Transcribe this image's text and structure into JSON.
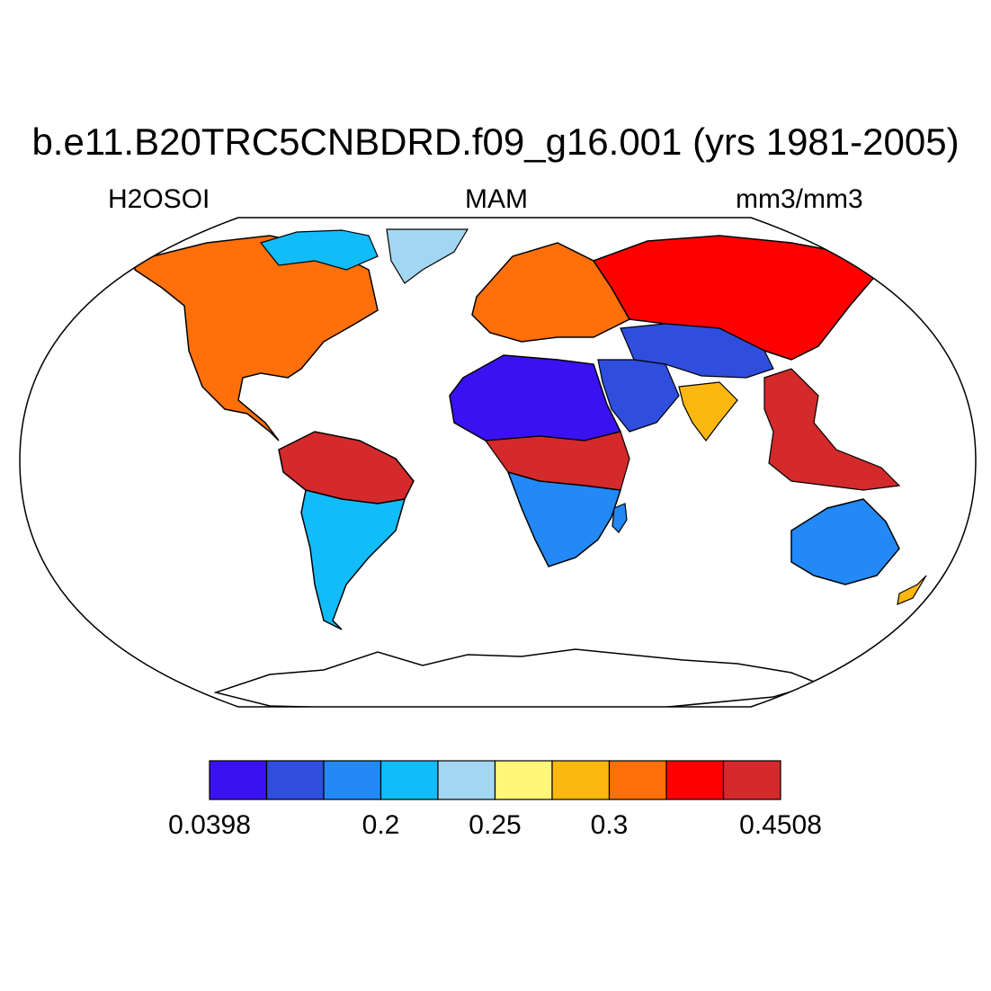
{
  "title": "b.e11.B20TRC5CNBDRD.f09_g16.001 (yrs 1981-2005)",
  "left_label": "H2OSOI",
  "center_label": "MAM",
  "right_label": "mm3/mm3",
  "colorbar": {
    "colors": [
      "#3a12f2",
      "#2f4ede",
      "#2289f6",
      "#12bcf8",
      "#a3d6f2",
      "#fff67a",
      "#fdb80f",
      "#ff700a",
      "#ff0000",
      "#d42a2b"
    ],
    "labels": [
      {
        "text": "0.0398",
        "boundary": 0
      },
      {
        "text": "0.2",
        "boundary": 3
      },
      {
        "text": "0.25",
        "boundary": 5
      },
      {
        "text": "0.3",
        "boundary": 7
      },
      {
        "text": "0.4508",
        "boundary": 10
      }
    ]
  },
  "regions": [
    {
      "name": "sahara",
      "color": "#3a12f2"
    },
    {
      "name": "arabia",
      "color": "#2f4ede"
    },
    {
      "name": "central-asia",
      "color": "#2f4ede"
    },
    {
      "name": "australia",
      "color": "#2289f6"
    },
    {
      "name": "southern-africa",
      "color": "#2289f6"
    },
    {
      "name": "amazon",
      "color": "#d42a2b"
    },
    {
      "name": "congo",
      "color": "#d42a2b"
    },
    {
      "name": "siberia",
      "color": "#ff0000"
    },
    {
      "name": "europe",
      "color": "#ff700a"
    },
    {
      "name": "north-america",
      "color": "#ff700a"
    },
    {
      "name": "canada-north",
      "color": "#12bcf8"
    },
    {
      "name": "greenland-coast",
      "color": "#a3d6f2"
    },
    {
      "name": "india",
      "color": "#fdb80f"
    },
    {
      "name": "southeast-asia",
      "color": "#d42a2b"
    },
    {
      "name": "patagonia",
      "color": "#12bcf8"
    },
    {
      "name": "antarctica",
      "color": "#ffffff"
    }
  ]
}
